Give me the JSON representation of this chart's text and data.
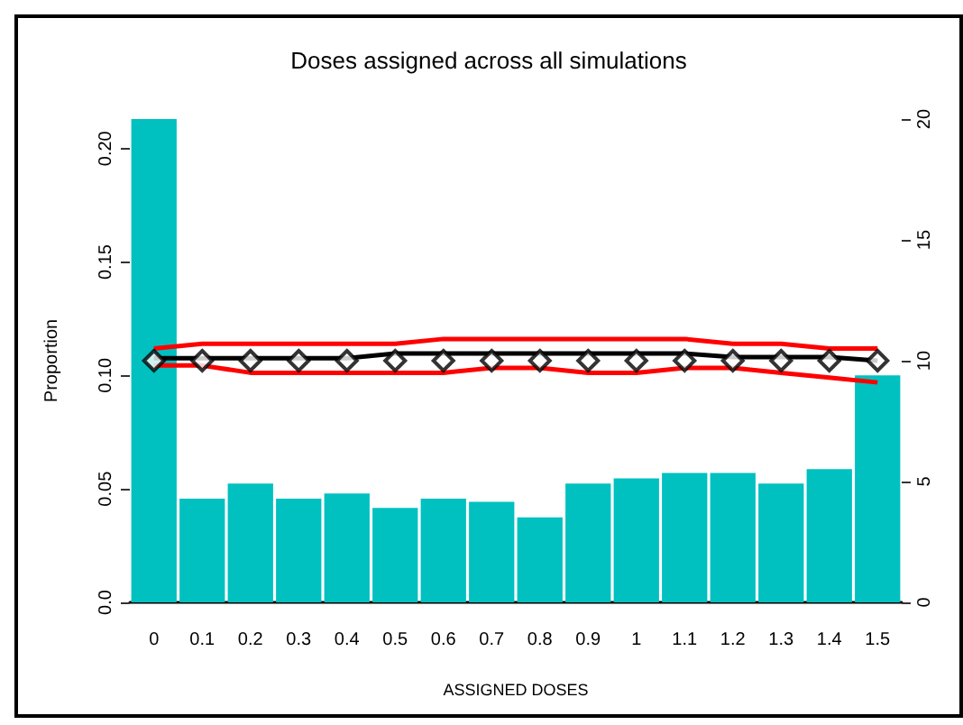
{
  "chart_data": {
    "type": "bar",
    "title": "Doses assigned across all simulations",
    "xlabel": "ASSIGNED DOSES",
    "ylabel": "Proportion",
    "categories": [
      "0",
      "0.1",
      "0.2",
      "0.3",
      "0.4",
      "0.5",
      "0.6",
      "0.7",
      "0.8",
      "0.9",
      "1",
      "1.1",
      "1.2",
      "1.3",
      "1.4",
      "1.5"
    ],
    "series": [
      {
        "color": "#00c0c0",
        "values": [
          0.213,
          0.0457,
          0.0524,
          0.0457,
          0.048,
          0.0416,
          0.0457,
          0.0443,
          0.0375,
          0.0524,
          0.0546,
          0.057,
          0.057,
          0.0524,
          0.0587,
          0.1
        ]
      },
      {
        "type": "line",
        "axis": "y2",
        "color": "#ff0000",
        "marker": "none",
        "values": [
          10.5,
          10.7,
          10.7,
          10.7,
          10.7,
          10.7,
          10.9,
          10.9,
          10.9,
          10.9,
          10.9,
          10.9,
          10.7,
          10.7,
          10.5,
          10.5
        ]
      },
      {
        "type": "line",
        "axis": "y2",
        "color": "#ff0000",
        "marker": "none",
        "values": [
          9.8,
          9.8,
          9.5,
          9.5,
          9.5,
          9.5,
          9.5,
          9.7,
          9.7,
          9.5,
          9.5,
          9.7,
          9.7,
          9.5,
          9.3,
          9.1
        ]
      },
      {
        "type": "line",
        "axis": "y2",
        "color": "#000000",
        "marker": "none",
        "values": [
          10.1,
          10.1,
          10.1,
          10.1,
          10.1,
          10.3,
          10.3,
          10.3,
          10.3,
          10.3,
          10.3,
          10.3,
          10.15,
          10.15,
          10.15,
          10.0
        ]
      },
      {
        "type": "scatter",
        "axis": "y2",
        "color": "#000000",
        "marker": "diamond",
        "values": [
          10,
          10,
          10,
          10,
          10,
          10,
          10,
          10,
          10,
          10,
          10,
          10,
          10,
          10,
          10,
          10
        ]
      }
    ],
    "ylim": [
      0,
      0.213
    ],
    "yticks": [
      {
        "value": 0,
        "label": "0.0"
      },
      0.05,
      {
        "value": 0.1,
        "label": "0.10"
      },
      0.15,
      {
        "value": 0.2,
        "label": "0.20"
      }
    ],
    "y2lim": [
      0,
      20
    ],
    "y2ticks": [
      0,
      5,
      10,
      15,
      20
    ],
    "grid": false
  }
}
